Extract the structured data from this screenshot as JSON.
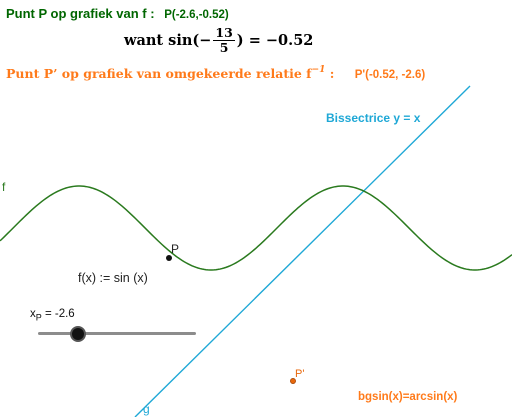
{
  "header": {
    "line1_text": "Punt P op grafiek van f :",
    "line1_coord": "P(-2.6,-0.52)",
    "formula_prefix": "want  sin(−",
    "formula_num": "13",
    "formula_den": "5",
    "formula_suffix": ") = −0.52",
    "line3_text": "Punt P’ op grafiek van omgekeerde relatie f",
    "line3_sup": "−1",
    "line3_colon": " :",
    "line3_coord": "P'(-0.52, -2.6)"
  },
  "labels": {
    "bissectrice": "Bissectrice y = x",
    "f_name": "f",
    "g_name": "g",
    "fx_def": "f(x) := sin (x)",
    "point_P": "P",
    "point_P_prime": "P'",
    "xp_prefix": "x",
    "xp_sub": "P",
    "xp_value": " = -2.6",
    "bgsin": "bgsin(x)=arcsin(x)"
  },
  "slider": {
    "value": -2.6
  },
  "colors": {
    "f_curve": "#2a7a1e",
    "line_g": "#1fa8d6",
    "point_P": "#111111",
    "point_P_prime": "#e8680c",
    "title_green": "#006600",
    "orange": "#ff7a1a"
  }
}
